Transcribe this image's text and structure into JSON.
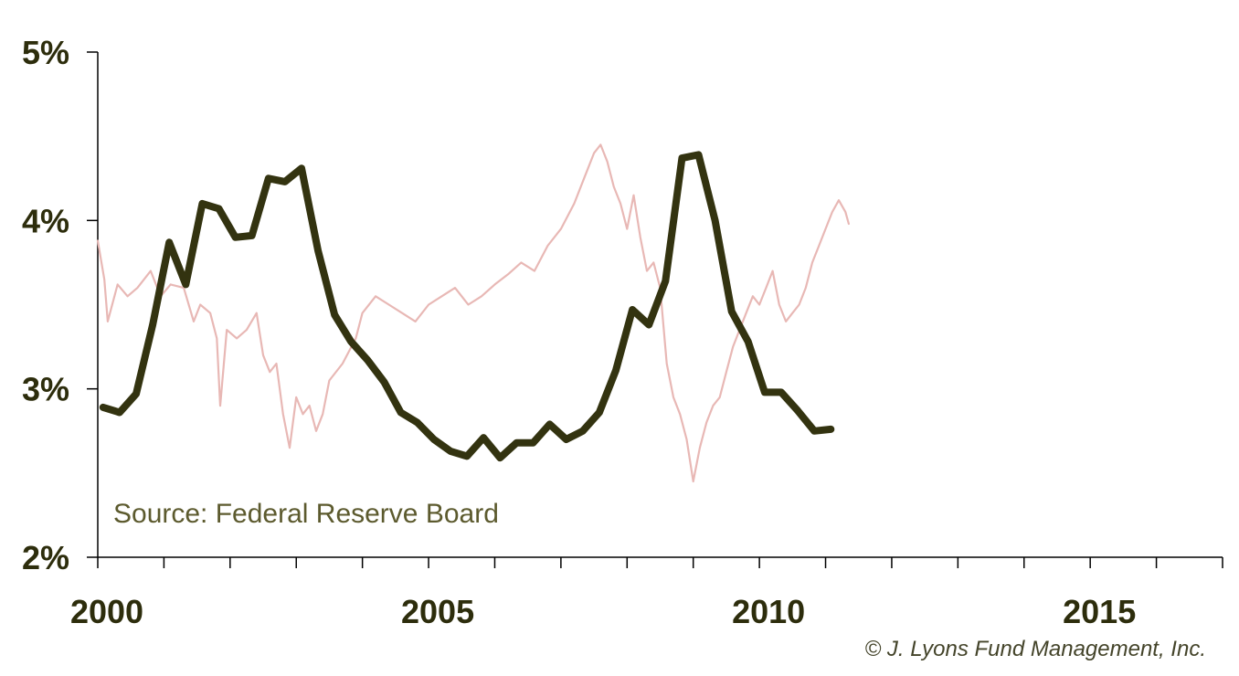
{
  "chart_data": {
    "type": "line",
    "title": "",
    "xlabel": "",
    "ylabel": "",
    "xlim": [
      2000,
      2017
    ],
    "ylim": [
      2,
      5
    ],
    "y_ticks": [
      2,
      3,
      4,
      5
    ],
    "y_tick_labels": [
      "2%",
      "3%",
      "4%",
      "5%"
    ],
    "x_ticks": [
      2000,
      2005,
      2010,
      2015
    ],
    "x_tick_labels": [
      "2000",
      "2005",
      "2010",
      "2015"
    ],
    "grid": false,
    "annotations": {
      "source": "Source: Federal Reserve Board",
      "credit": "© J. Lyons Fund Management, Inc."
    },
    "series": [
      {
        "color": "#e8b8b5",
        "style": "thin-daily",
        "points": [
          [
            2000.0,
            3.88
          ],
          [
            2000.1,
            3.65
          ],
          [
            2000.15,
            3.4
          ],
          [
            2000.3,
            3.62
          ],
          [
            2000.45,
            3.55
          ],
          [
            2000.6,
            3.6
          ],
          [
            2000.8,
            3.7
          ],
          [
            2000.95,
            3.55
          ],
          [
            2001.1,
            3.62
          ],
          [
            2001.3,
            3.6
          ],
          [
            2001.45,
            3.4
          ],
          [
            2001.55,
            3.5
          ],
          [
            2001.7,
            3.45
          ],
          [
            2001.8,
            3.3
          ],
          [
            2001.85,
            2.9
          ],
          [
            2001.95,
            3.35
          ],
          [
            2002.1,
            3.3
          ],
          [
            2002.25,
            3.35
          ],
          [
            2002.4,
            3.45
          ],
          [
            2002.5,
            3.2
          ],
          [
            2002.6,
            3.1
          ],
          [
            2002.7,
            3.15
          ],
          [
            2002.8,
            2.85
          ],
          [
            2002.9,
            2.65
          ],
          [
            2003.0,
            2.95
          ],
          [
            2003.1,
            2.85
          ],
          [
            2003.2,
            2.9
          ],
          [
            2003.3,
            2.75
          ],
          [
            2003.4,
            2.85
          ],
          [
            2003.5,
            3.05
          ],
          [
            2003.7,
            3.15
          ],
          [
            2003.9,
            3.3
          ],
          [
            2004.0,
            3.45
          ],
          [
            2004.2,
            3.55
          ],
          [
            2004.4,
            3.5
          ],
          [
            2004.6,
            3.45
          ],
          [
            2004.8,
            3.4
          ],
          [
            2005.0,
            3.5
          ],
          [
            2005.2,
            3.55
          ],
          [
            2005.4,
            3.6
          ],
          [
            2005.6,
            3.5
          ],
          [
            2005.8,
            3.55
          ],
          [
            2006.0,
            3.62
          ],
          [
            2006.2,
            3.68
          ],
          [
            2006.4,
            3.75
          ],
          [
            2006.6,
            3.7
          ],
          [
            2006.8,
            3.85
          ],
          [
            2007.0,
            3.95
          ],
          [
            2007.2,
            4.1
          ],
          [
            2007.35,
            4.25
          ],
          [
            2007.5,
            4.4
          ],
          [
            2007.6,
            4.45
          ],
          [
            2007.7,
            4.35
          ],
          [
            2007.8,
            4.2
          ],
          [
            2007.9,
            4.1
          ],
          [
            2008.0,
            3.95
          ],
          [
            2008.1,
            4.15
          ],
          [
            2008.2,
            3.9
          ],
          [
            2008.3,
            3.7
          ],
          [
            2008.4,
            3.75
          ],
          [
            2008.5,
            3.6
          ],
          [
            2008.6,
            3.15
          ],
          [
            2008.7,
            2.95
          ],
          [
            2008.8,
            2.85
          ],
          [
            2008.9,
            2.7
          ],
          [
            2009.0,
            2.45
          ],
          [
            2009.1,
            2.65
          ],
          [
            2009.2,
            2.8
          ],
          [
            2009.3,
            2.9
          ],
          [
            2009.4,
            2.95
          ],
          [
            2009.5,
            3.1
          ],
          [
            2009.6,
            3.25
          ],
          [
            2009.7,
            3.35
          ],
          [
            2009.8,
            3.45
          ],
          [
            2009.9,
            3.55
          ],
          [
            2010.0,
            3.5
          ],
          [
            2010.1,
            3.6
          ],
          [
            2010.2,
            3.7
          ],
          [
            2010.3,
            3.5
          ],
          [
            2010.4,
            3.4
          ],
          [
            2010.5,
            3.45
          ],
          [
            2010.6,
            3.5
          ],
          [
            2010.7,
            3.6
          ],
          [
            2010.8,
            3.75
          ],
          [
            2010.9,
            3.85
          ],
          [
            2011.0,
            3.95
          ],
          [
            2011.1,
            4.05
          ],
          [
            2011.2,
            4.12
          ],
          [
            2011.3,
            4.05
          ],
          [
            2011.35,
            3.98
          ]
        ]
      },
      {
        "color": "#333310",
        "style": "thick",
        "points": [
          [
            2000.08,
            2.89
          ],
          [
            2000.33,
            2.86
          ],
          [
            2000.58,
            2.97
          ],
          [
            2000.83,
            3.38
          ],
          [
            2001.08,
            3.87
          ],
          [
            2001.33,
            3.62
          ],
          [
            2001.58,
            4.1
          ],
          [
            2001.83,
            4.07
          ],
          [
            2002.08,
            3.9
          ],
          [
            2002.33,
            3.91
          ],
          [
            2002.58,
            4.25
          ],
          [
            2002.83,
            4.23
          ],
          [
            2003.08,
            4.31
          ],
          [
            2003.33,
            3.82
          ],
          [
            2003.58,
            3.44
          ],
          [
            2003.83,
            3.28
          ],
          [
            2004.08,
            3.17
          ],
          [
            2004.33,
            3.04
          ],
          [
            2004.58,
            2.86
          ],
          [
            2004.83,
            2.8
          ],
          [
            2005.08,
            2.7
          ],
          [
            2005.33,
            2.63
          ],
          [
            2005.58,
            2.6
          ],
          [
            2005.83,
            2.71
          ],
          [
            2006.08,
            2.59
          ],
          [
            2006.33,
            2.68
          ],
          [
            2006.58,
            2.68
          ],
          [
            2006.83,
            2.79
          ],
          [
            2007.08,
            2.7
          ],
          [
            2007.33,
            2.75
          ],
          [
            2007.58,
            2.86
          ],
          [
            2007.83,
            3.11
          ],
          [
            2008.08,
            3.47
          ],
          [
            2008.33,
            3.38
          ],
          [
            2008.58,
            3.64
          ],
          [
            2008.83,
            4.37
          ],
          [
            2009.08,
            4.39
          ],
          [
            2009.33,
            4.0
          ],
          [
            2009.58,
            3.46
          ],
          [
            2009.83,
            3.28
          ],
          [
            2010.08,
            2.98
          ],
          [
            2010.33,
            2.98
          ],
          [
            2010.58,
            2.87
          ],
          [
            2010.83,
            2.75
          ],
          [
            2011.08,
            2.76
          ]
        ]
      }
    ]
  }
}
